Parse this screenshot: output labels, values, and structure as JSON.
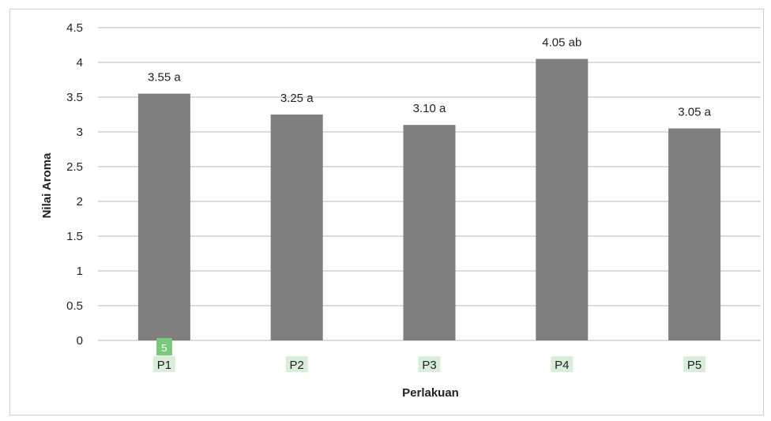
{
  "chart_data": {
    "type": "bar",
    "categories": [
      "P1",
      "P2",
      "P3",
      "P4",
      "P5"
    ],
    "values": [
      3.55,
      3.25,
      3.1,
      4.05,
      3.05
    ],
    "data_labels": [
      "3.55 a",
      "3.25 a",
      "3.10 a",
      "4.05 ab",
      "3.05 a"
    ],
    "yticks": [
      "0",
      "0.5",
      "1",
      "1.5",
      "2",
      "2.5",
      "3",
      "3.5",
      "4",
      "4.5"
    ],
    "ylim": [
      0,
      4.5
    ],
    "xlabel": "Perlakuan",
    "ylabel": "Nilai Aroma",
    "grid": true,
    "legend": "none",
    "bar_color": "#7f7f7f",
    "category_highlight_color": "#d8eed8",
    "marker": "5"
  }
}
